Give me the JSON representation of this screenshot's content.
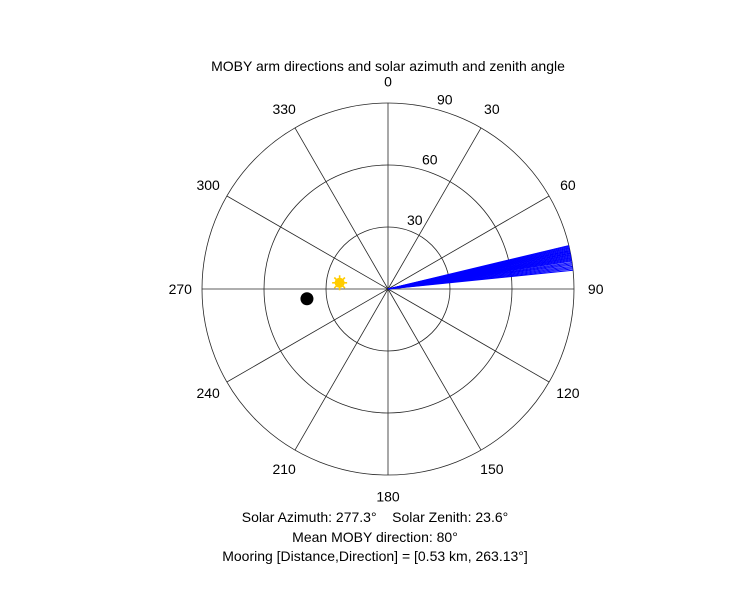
{
  "chart_data": {
    "type": "polar",
    "title": "MOBY arm directions and solar azimuth and zenith angle",
    "orientation": "clockwise, 0 at top",
    "angle_ticks": [
      0,
      30,
      60,
      90,
      120,
      150,
      180,
      210,
      240,
      270,
      300,
      330
    ],
    "angle_tick_labels": [
      "0",
      "30",
      "60",
      "90",
      "120",
      "150",
      "180",
      "210",
      "240",
      "270",
      "300",
      "330"
    ],
    "radial_range": [
      0,
      90
    ],
    "radial_ticks": [
      30,
      60,
      90
    ],
    "radial_tick_labels": [
      "30",
      "60",
      "90"
    ],
    "grid": true,
    "series": [
      {
        "kind": "arm_directions",
        "color": "#0000ff",
        "angles_deg": [
          76.5,
          76.8,
          77.1,
          77.4,
          77.7,
          78.0,
          78.2,
          78.5,
          78.8,
          79.0,
          79.3,
          79.6,
          79.9,
          80.2,
          80.5,
          80.8,
          81.1,
          81.4,
          81.8,
          82.2,
          82.6,
          83.0,
          83.4,
          83.8,
          84.2
        ],
        "radius": 90
      },
      {
        "kind": "sun_marker",
        "color": "#ffcc00",
        "azimuth_deg": 277.3,
        "zenith_deg": 23.6
      },
      {
        "kind": "mooring_marker",
        "color": "#000000",
        "direction_deg": 263.13,
        "r": 39.5
      }
    ]
  },
  "captions": {
    "solar_line": "Solar Azimuth: 277.3°    Solar Zenith: 23.6°",
    "mean_direction_line": "Mean MOBY direction: 80°",
    "mooring_line": "Mooring [Distance,Direction] = [0.53 km, 263.13°]"
  },
  "colors": {
    "grid": "#262626",
    "arms": "#0000ff",
    "sun": "#ffcc00",
    "mooring": "#000000"
  }
}
